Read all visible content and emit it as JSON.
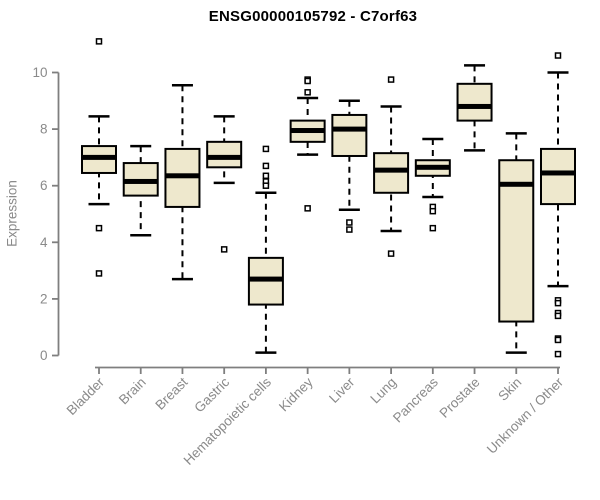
{
  "chart_data": {
    "type": "boxplot",
    "title": "ENSG00000105792 - C7orf63",
    "ylabel": "Expression",
    "ylim": [
      0,
      11.3
    ],
    "yticks": [
      0,
      2,
      4,
      6,
      8,
      10
    ],
    "grid": false,
    "legend": null,
    "colors": {
      "box_fill": "#EEE8CD",
      "box_stroke": "#000000",
      "median": "#000000",
      "axis": "#7f7f7f",
      "tick_label": "#8a8a8a",
      "title": "#000000",
      "background": "#ffffff"
    },
    "categories": [
      "Bladder",
      "Brain",
      "Breast",
      "Gastric",
      "Hematopoietic cells",
      "Kidney",
      "Liver",
      "Lung",
      "Pancreas",
      "Prostate",
      "Skin",
      "Unknown / Other"
    ],
    "series": [
      {
        "category": "Bladder",
        "whisker_low": 5.35,
        "q1": 6.45,
        "median": 7.0,
        "q3": 7.4,
        "whisker_high": 8.45,
        "outliers": [
          11.1,
          4.5,
          2.9
        ]
      },
      {
        "category": "Brain",
        "whisker_low": 4.25,
        "q1": 5.65,
        "median": 6.15,
        "q3": 6.8,
        "whisker_high": 7.4,
        "outliers": []
      },
      {
        "category": "Breast",
        "whisker_low": 2.7,
        "q1": 5.25,
        "median": 6.35,
        "q3": 7.3,
        "whisker_high": 9.55,
        "outliers": []
      },
      {
        "category": "Gastric",
        "whisker_low": 6.1,
        "q1": 6.65,
        "median": 7.0,
        "q3": 7.55,
        "whisker_high": 8.45,
        "outliers": [
          3.75
        ]
      },
      {
        "category": "Hematopoietic cells",
        "whisker_low": 0.1,
        "q1": 1.8,
        "median": 2.7,
        "q3": 3.45,
        "whisker_high": 5.75,
        "outliers": [
          7.3,
          6.7,
          6.35,
          6.15,
          6.0
        ]
      },
      {
        "category": "Kidney",
        "whisker_low": 7.1,
        "q1": 7.55,
        "median": 7.95,
        "q3": 8.3,
        "whisker_high": 9.1,
        "outliers": [
          9.75,
          9.7,
          9.3,
          5.2
        ]
      },
      {
        "category": "Liver",
        "whisker_low": 5.15,
        "q1": 7.05,
        "median": 8.0,
        "q3": 8.5,
        "whisker_high": 9.0,
        "outliers": [
          4.7,
          4.45
        ]
      },
      {
        "category": "Lung",
        "whisker_low": 4.4,
        "q1": 5.75,
        "median": 6.55,
        "q3": 7.15,
        "whisker_high": 8.8,
        "outliers": [
          9.75,
          3.6
        ]
      },
      {
        "category": "Pancreas",
        "whisker_low": 5.6,
        "q1": 6.35,
        "median": 6.65,
        "q3": 6.9,
        "whisker_high": 7.65,
        "outliers": [
          5.25,
          5.1,
          4.5
        ]
      },
      {
        "category": "Prostate",
        "whisker_low": 7.25,
        "q1": 8.3,
        "median": 8.8,
        "q3": 9.6,
        "whisker_high": 10.25,
        "outliers": []
      },
      {
        "category": "Skin",
        "whisker_low": 0.1,
        "q1": 1.2,
        "median": 6.05,
        "q3": 6.9,
        "whisker_high": 7.85,
        "outliers": []
      },
      {
        "category": "Unknown / Other",
        "whisker_low": 2.45,
        "q1": 5.35,
        "median": 6.45,
        "q3": 7.3,
        "whisker_high": 10.0,
        "outliers": [
          10.6,
          1.95,
          1.85,
          1.5,
          1.4,
          0.6,
          0.55,
          0.05
        ]
      }
    ]
  }
}
